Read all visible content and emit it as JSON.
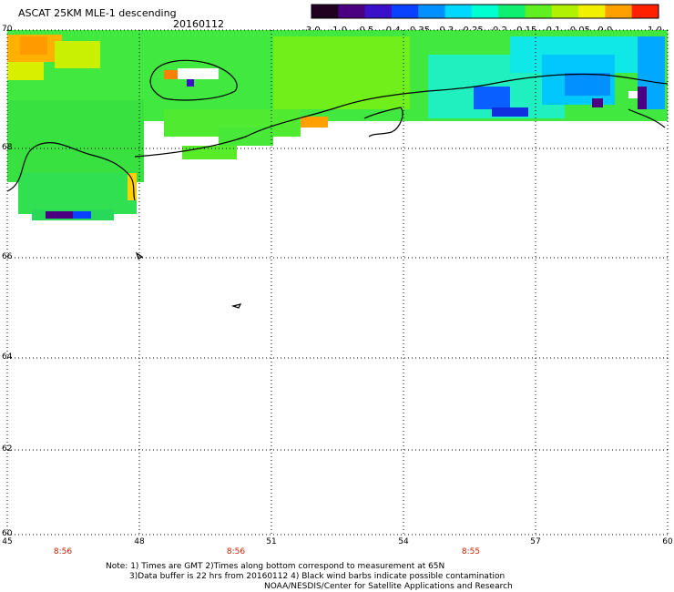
{
  "header": {
    "title": "ASCAT 25KM MLE-1 descending",
    "date": "20160112"
  },
  "colorbar": {
    "tick_labels": [
      "-3.0",
      "-1.0",
      "-0.5",
      "-0.4",
      "-0.35",
      "-0.3",
      "-0.25",
      "-0.2",
      "-0.15",
      "-0.1",
      "-0.05",
      "0.0",
      "1.0"
    ],
    "colors": [
      "#200020",
      "#4b0082",
      "#3a10c8",
      "#0a40ff",
      "#0090ff",
      "#00d8ff",
      "#00ffd0",
      "#10f070",
      "#60f020",
      "#b0f000",
      "#f0f000",
      "#ffa000",
      "#ff2000"
    ]
  },
  "map": {
    "lat_labels": [
      "70",
      "68",
      "66",
      "64",
      "62",
      "60"
    ],
    "lon_labels": [
      "45",
      "48",
      "51",
      "54",
      "57",
      "60"
    ],
    "time_labels": [
      "8:56",
      "8:56",
      "8:55"
    ]
  },
  "footer": {
    "note_line1": "Note: 1) Times are GMT 2)Times along bottom correspond to measurement at 65N",
    "note_line2": "3)Data buffer is 22 hrs from 20160112 4) Black wind barbs indicate possible contamination",
    "credit": "NOAA/NESDIS/Center for Satellite Applications and Research"
  }
}
